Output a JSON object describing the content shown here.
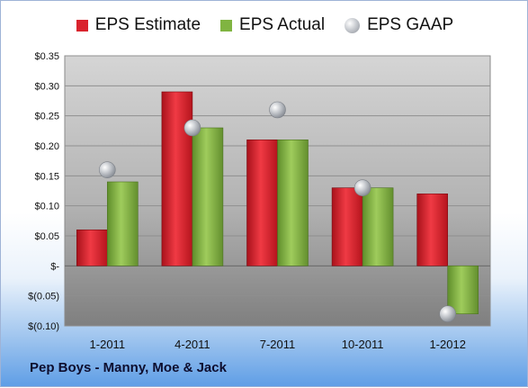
{
  "chart_data": {
    "type": "bar",
    "categories": [
      "1-2011",
      "4-2011",
      "7-2011",
      "10-2011",
      "1-2012"
    ],
    "series": [
      {
        "name": "EPS Estimate",
        "kind": "bar",
        "color": "#d9232d",
        "values": [
          0.06,
          0.29,
          0.21,
          0.13,
          0.12
        ]
      },
      {
        "name": "EPS Actual",
        "kind": "bar",
        "color": "#80b441",
        "values": [
          0.14,
          0.23,
          0.21,
          0.13,
          -0.08
        ]
      },
      {
        "name": "EPS GAAP",
        "kind": "marker",
        "color": "#b8bcc2",
        "values": [
          0.16,
          0.23,
          0.26,
          0.13,
          -0.08
        ]
      }
    ],
    "y_ticks": [
      {
        "value": 0.35,
        "label": "$0.35"
      },
      {
        "value": 0.3,
        "label": "$0.30"
      },
      {
        "value": 0.25,
        "label": "$0.25"
      },
      {
        "value": 0.2,
        "label": "$0.20"
      },
      {
        "value": 0.15,
        "label": "$0.15"
      },
      {
        "value": 0.1,
        "label": "$0.10"
      },
      {
        "value": 0.05,
        "label": "$0.05"
      },
      {
        "value": 0.0,
        "label": "$-"
      },
      {
        "value": -0.05,
        "label": "$(0.05)"
      },
      {
        "value": -0.1,
        "label": "$(0.10)"
      }
    ],
    "ylim": [
      -0.1,
      0.35
    ],
    "grid": true,
    "legend_position": "top",
    "title": "",
    "xlabel": "",
    "ylabel": ""
  },
  "legend": [
    {
      "label": "EPS Estimate",
      "color": "#d9232d"
    },
    {
      "label": "EPS Actual",
      "color": "#80b441"
    },
    {
      "label": "EPS GAAP",
      "color": "#b8bcc2"
    }
  ],
  "footer": {
    "company": "Pep Boys - Manny, Moe & Jack"
  }
}
